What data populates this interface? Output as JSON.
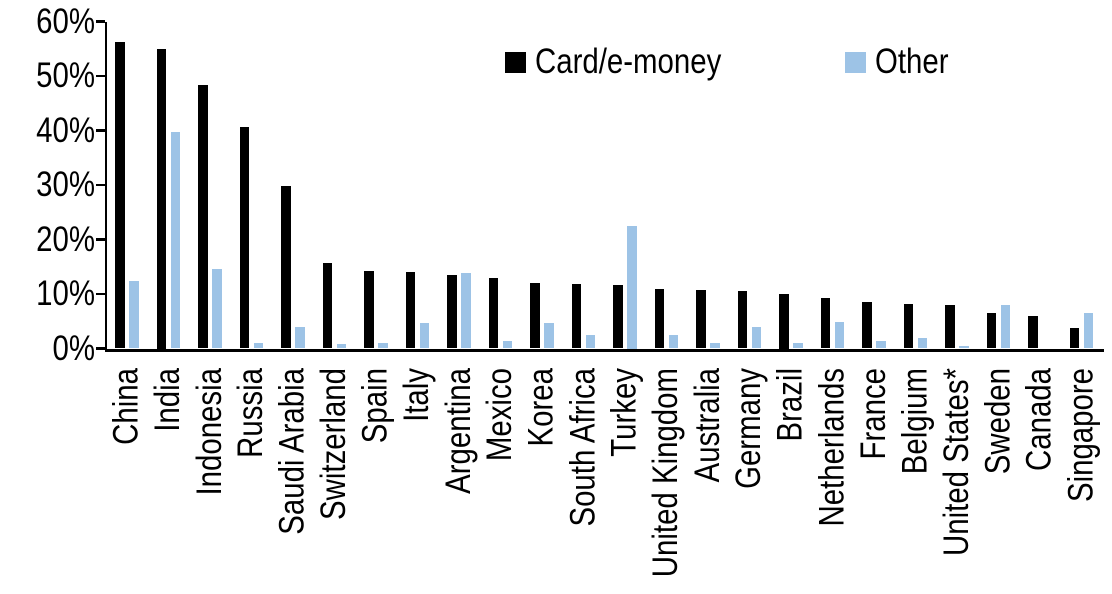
{
  "colors": {
    "series_card": "#000000",
    "series_other": "#9DC3E6",
    "axis": "#000000",
    "background": "#FFFFFF"
  },
  "legend": {
    "card_label": "Card/e-money",
    "other_label": "Other"
  },
  "chart_data": {
    "type": "bar",
    "title": "",
    "xlabel": "",
    "ylabel": "",
    "ylim": [
      0,
      60
    ],
    "grid": false,
    "legend_position": "top-center",
    "yticks_labels": [
      "0%",
      "10%",
      "20%",
      "30%",
      "40%",
      "50%",
      "60%"
    ],
    "ytick_values": [
      0,
      10,
      20,
      30,
      40,
      50,
      60
    ],
    "categories": [
      "China",
      "India",
      "Indonesia",
      "Russia",
      "Saudi Arabia",
      "Switzerland",
      "Spain",
      "Italy",
      "Argentina",
      "Mexico",
      "Korea",
      "South Africa",
      "Turkey",
      "United Kingdom",
      "Australia",
      "Germany",
      "Brazil",
      "Netherlands",
      "France",
      "Belgium",
      "United States*",
      "Sweden",
      "Canada",
      "Singapore"
    ],
    "series": [
      {
        "name": "Card/e-money",
        "color": "#000000",
        "values": [
          56.3,
          55.0,
          48.3,
          40.6,
          29.8,
          15.6,
          14.2,
          14.1,
          13.4,
          12.9,
          12.1,
          11.9,
          11.6,
          11.0,
          10.8,
          10.6,
          10.0,
          9.2,
          8.6,
          8.1,
          7.9,
          6.5,
          5.9,
          3.8
        ]
      },
      {
        "name": "Other",
        "color": "#9DC3E6",
        "values": [
          12.3,
          39.8,
          14.5,
          1.0,
          3.9,
          0.8,
          1.0,
          4.7,
          13.8,
          1.3,
          4.7,
          2.4,
          22.5,
          2.4,
          1.0,
          3.9,
          1.1,
          4.8,
          1.4,
          2.0,
          0.4,
          8.0,
          0.0,
          6.6
        ]
      }
    ]
  }
}
